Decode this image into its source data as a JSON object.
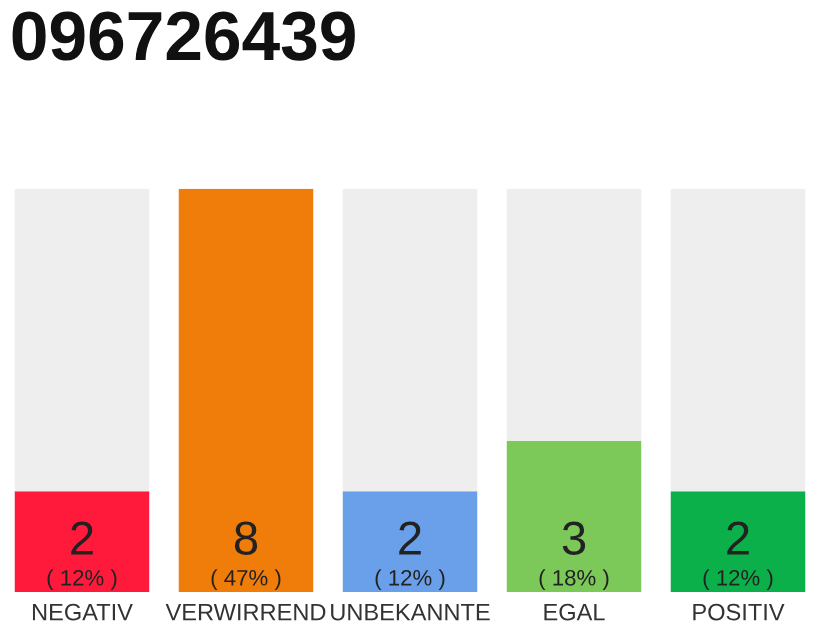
{
  "chart_data": {
    "type": "bar",
    "title": "096726439",
    "stacked": true,
    "categories": [
      "NEGATIV",
      "VERWIRREND",
      "UNBEKANNTE",
      "EGAL",
      "POSITIV"
    ],
    "series": [
      {
        "colors": [
          "#ff1a3c",
          "#f07d0a",
          "#6aa0ea",
          "#7cc95a",
          "#0cb04a"
        ],
        "values": [
          2,
          8,
          2,
          3,
          2
        ],
        "value_labels": [
          "2\n( 12% )",
          "8\n( 47% )",
          "2\n( 12% )",
          "3\n( 18% )",
          "2\n( 12% )"
        ]
      },
      {
        "color": "#eeeeee",
        "values": [
          6,
          0,
          6,
          5,
          6
        ]
      }
    ],
    "grid": false,
    "legend": false
  }
}
